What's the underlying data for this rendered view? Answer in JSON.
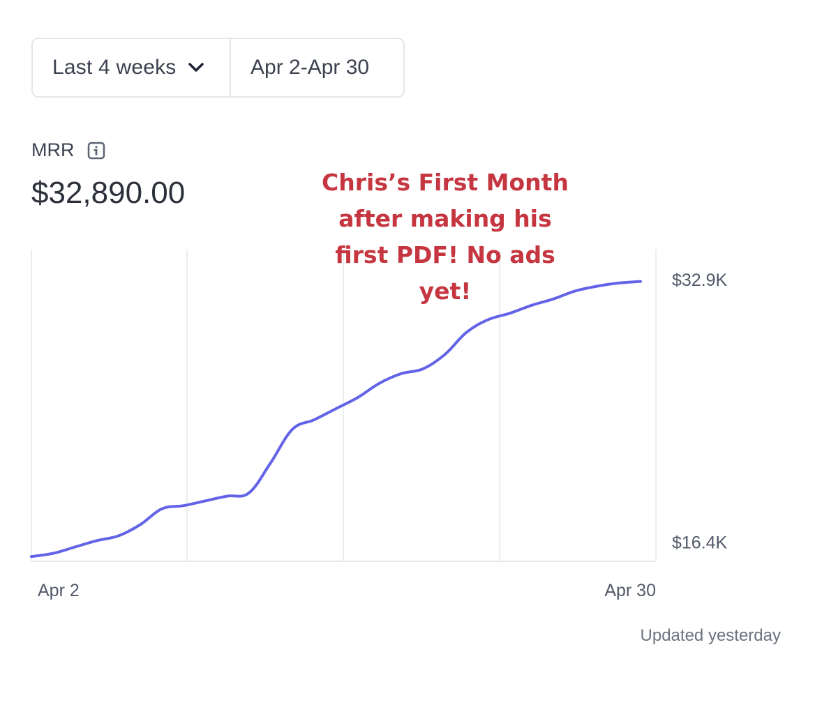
{
  "controls": {
    "range_label": "Last 4 weeks",
    "range_dates": "Apr 2-Apr 30"
  },
  "metric": {
    "label": "MRR",
    "value": "$32,890.00"
  },
  "annotation": {
    "text": "Chris’s First Month\nafter making his\nfirst PDF! No ads yet!",
    "color": "#c53640"
  },
  "footer": {
    "updated": "Updated yesterday"
  },
  "icons": {
    "dropdown": "chevron-down-icon",
    "info": "info-icon"
  },
  "chart_data": {
    "type": "line",
    "title": "",
    "xlabel": "",
    "ylabel": "",
    "x_tick_labels": [
      "Apr 2",
      "Apr 30"
    ],
    "y_tick_labels": [
      "$32.9K",
      "$16.4K"
    ],
    "y_ticks": [
      32.9,
      16.4
    ],
    "ylim": [
      15.3,
      34.9
    ],
    "grid": "vertical",
    "line_color": "#6363e8",
    "series": [
      {
        "name": "",
        "x": [
          "Apr 2",
          "Apr 3",
          "Apr 4",
          "Apr 5",
          "Apr 6",
          "Apr 7",
          "Apr 8",
          "Apr 9",
          "Apr 10",
          "Apr 11",
          "Apr 12",
          "Apr 13",
          "Apr 14",
          "Apr 15",
          "Apr 16",
          "Apr 17",
          "Apr 18",
          "Apr 19",
          "Apr 20",
          "Apr 21",
          "Apr 22",
          "Apr 23",
          "Apr 24",
          "Apr 25",
          "Apr 26",
          "Apr 27",
          "Apr 28",
          "Apr 29",
          "Apr 30"
        ],
        "values": [
          15.6,
          15.8,
          16.2,
          16.6,
          16.9,
          17.6,
          18.6,
          18.8,
          19.1,
          19.4,
          19.6,
          21.5,
          23.6,
          24.2,
          24.9,
          25.6,
          26.5,
          27.1,
          27.4,
          28.3,
          29.7,
          30.5,
          30.9,
          31.4,
          31.8,
          32.3,
          32.6,
          32.8,
          32.9
        ]
      }
    ]
  }
}
